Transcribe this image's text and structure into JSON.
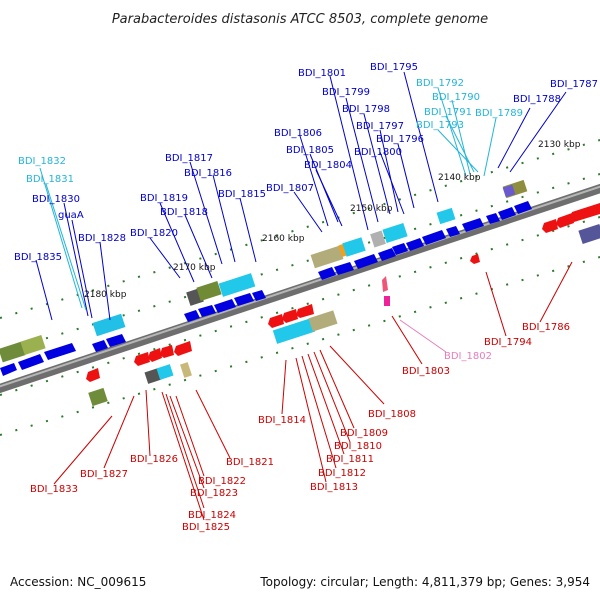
{
  "title": "Parabacteroides distasonis ATCC 8503, complete genome",
  "footer": {
    "accession": "Accession: NC_009615",
    "summary": "Topology: circular; Length: 4,811,379 bp; Genes: 3,954"
  },
  "scale_labels": [
    "2130 kbp",
    "2140 kbp",
    "2150 kbp",
    "2160 kbp",
    "2170 kbp",
    "2180 kbp"
  ],
  "colors": {
    "forward_label": "#0000cc",
    "reverse_label": "#cc0000",
    "rna_forward": "#22b5d8",
    "pseudo_reverse": "#e87cbc",
    "backbone": "#808080",
    "tick": "#2a7a2a"
  },
  "genes_forward": [
    "BDI_1835",
    "BDI_1830",
    "guaA",
    "BDI_1828",
    "BDI_1820",
    "BDI_1819",
    "BDI_1818",
    "BDI_1817",
    "BDI_1816",
    "BDI_1815",
    "BDI_1807",
    "BDI_1806",
    "BDI_1805",
    "BDI_1804",
    "BDI_1800",
    "BDI_1801",
    "BDI_1799",
    "BDI_1798",
    "BDI_1797",
    "BDI_1796",
    "BDI_1795",
    "BDI_1788",
    "BDI_1787"
  ],
  "genes_rna": [
    "BDI_1832",
    "BDI_1831",
    "BDI_1792",
    "BDI_1790",
    "BDI_1791",
    "BDI_1793",
    "BDI_1789"
  ],
  "genes_reverse": [
    "BDI_1833",
    "BDI_1827",
    "BDI_1826",
    "BDI_1822",
    "BDI_1823",
    "BDI_1824",
    "BDI_1825",
    "BDI_1821",
    "BDI_1814",
    "BDI_1813",
    "BDI_1812",
    "BDI_1811",
    "BDI_1810",
    "BDI_1809",
    "BDI_1808",
    "BDI_1803",
    "BDI_1794",
    "BDI_1786"
  ],
  "genes_pseudo": [
    "BDI_1802"
  ]
}
